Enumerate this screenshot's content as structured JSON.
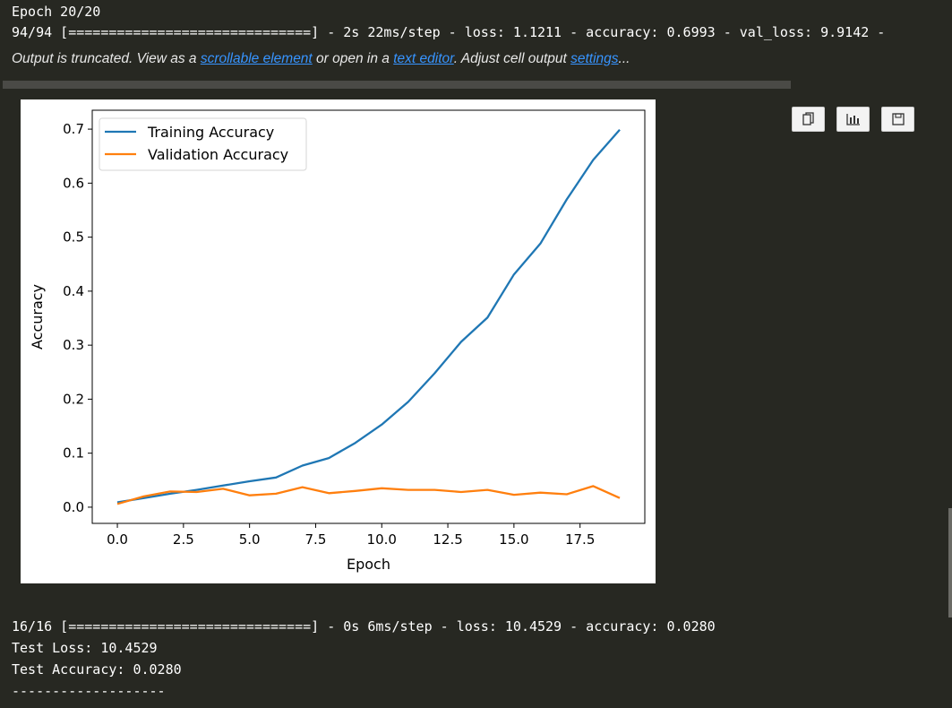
{
  "console": {
    "epoch_line": "Epoch 20/20",
    "progress_line": "94/94 [==============================] - 2s 22ms/step - loss: 1.1211 - accuracy: 0.6993 - val_loss: 9.9142 -",
    "truncated": {
      "prefix": "Output is truncated. View as a ",
      "link1": "scrollable element",
      "mid": " or open in a ",
      "link2": "text editor",
      "mid2": ". Adjust cell output ",
      "link3": "settings",
      "suffix": "..."
    },
    "eval_line": "16/16 [==============================] - 0s 6ms/step - loss: 10.4529 - accuracy: 0.0280",
    "test_loss_line": "Test Loss: 10.4529",
    "test_acc_line": "Test Accuracy: 0.0280",
    "separator_line": "-------------------"
  },
  "toolbar": {
    "copy_icon": "copy-icon",
    "chart_icon": "chart-icon",
    "save_icon": "save-icon"
  },
  "chart_data": {
    "type": "line",
    "xlabel": "Epoch",
    "ylabel": "Accuracy",
    "xlim": [
      -0.95,
      19.95
    ],
    "ylim": [
      -0.03,
      0.735
    ],
    "xticks": [
      0.0,
      2.5,
      5.0,
      7.5,
      10.0,
      12.5,
      15.0,
      17.5
    ],
    "xtick_labels": [
      "0.0",
      "2.5",
      "5.0",
      "7.5",
      "10.0",
      "12.5",
      "15.0",
      "17.5"
    ],
    "yticks": [
      0.0,
      0.1,
      0.2,
      0.3,
      0.4,
      0.5,
      0.6,
      0.7
    ],
    "ytick_labels": [
      "0.0",
      "0.1",
      "0.2",
      "0.3",
      "0.4",
      "0.5",
      "0.6",
      "0.7"
    ],
    "legend_position": "top-left",
    "grid": false,
    "x": [
      0,
      1,
      2,
      3,
      4,
      5,
      6,
      7,
      8,
      9,
      10,
      11,
      12,
      13,
      14,
      15,
      16,
      17,
      18,
      19
    ],
    "series": [
      {
        "name": "Training Accuracy",
        "color": "#1f77b4",
        "values": [
          0.009,
          0.017,
          0.025,
          0.032,
          0.04,
          0.048,
          0.055,
          0.077,
          0.091,
          0.119,
          0.153,
          0.195,
          0.248,
          0.306,
          0.351,
          0.431,
          0.488,
          0.57,
          0.643,
          0.699
        ]
      },
      {
        "name": "Validation Accuracy",
        "color": "#ff7f0e",
        "values": [
          0.006,
          0.02,
          0.029,
          0.028,
          0.034,
          0.022,
          0.025,
          0.037,
          0.026,
          0.03,
          0.035,
          0.032,
          0.032,
          0.028,
          0.032,
          0.023,
          0.027,
          0.024,
          0.039,
          0.017
        ]
      }
    ]
  }
}
